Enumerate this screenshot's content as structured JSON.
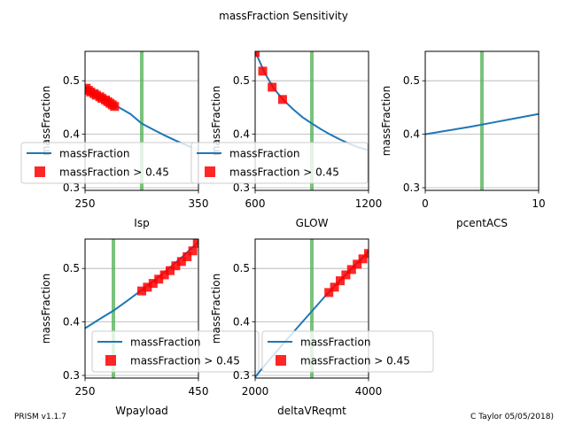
{
  "figure": {
    "title": "massFraction Sensitivity",
    "footer_left": "PRISM v1.1.7",
    "footer_right": "C Taylor 05/05/2018)"
  },
  "colors": {
    "line": "#1f77b4",
    "marker": "#ff0000",
    "reference": "#4caf50",
    "grid": "#b0b0b0"
  },
  "chart_data": [
    {
      "type": "line",
      "xlabel": "Isp",
      "ylabel": "massFraction",
      "xlim": [
        250,
        350
      ],
      "ylim": [
        0.295,
        0.555
      ],
      "xticks": [
        "250",
        "350"
      ],
      "yticks": [
        "0.3",
        "0.4",
        "0.5"
      ],
      "reference_x": 300,
      "series": [
        {
          "name": "massFraction",
          "kind": "line",
          "x": [
            250,
            260,
            270,
            280,
            290,
            300,
            310,
            320,
            330,
            340,
            350
          ],
          "y": [
            0.488,
            0.475,
            0.462,
            0.45,
            0.438,
            0.42,
            0.409,
            0.398,
            0.388,
            0.379,
            0.37
          ]
        },
        {
          "name": "massFraction > 0.45",
          "kind": "markers",
          "x": [
            251,
            253,
            255,
            258,
            260,
            263,
            265,
            268,
            270,
            272,
            274,
            276
          ],
          "y": [
            0.486,
            0.482,
            0.479,
            0.476,
            0.473,
            0.47,
            0.467,
            0.464,
            0.461,
            0.458,
            0.455,
            0.452
          ]
        }
      ],
      "legend": "lower-left"
    },
    {
      "type": "line",
      "xlabel": "GLOW",
      "ylabel": "massFraction",
      "xlim": [
        600,
        1200
      ],
      "ylim": [
        0.295,
        0.555
      ],
      "xticks": [
        "600",
        "1200"
      ],
      "yticks": [
        "0.3",
        "0.4",
        "0.5"
      ],
      "reference_x": 900,
      "series": [
        {
          "name": "massFraction",
          "kind": "line",
          "x": [
            600,
            650,
            700,
            750,
            800,
            850,
            900,
            950,
            1000,
            1050,
            1100,
            1150,
            1200
          ],
          "y": [
            0.555,
            0.515,
            0.485,
            0.464,
            0.447,
            0.432,
            0.42,
            0.409,
            0.399,
            0.39,
            0.382,
            0.375,
            0.37
          ]
        },
        {
          "name": "massFraction > 0.45",
          "kind": "markers",
          "x": [
            600,
            640,
            690,
            745
          ],
          "y": [
            0.553,
            0.518,
            0.488,
            0.465
          ]
        }
      ],
      "legend": "lower-left"
    },
    {
      "type": "line",
      "xlabel": "pcentACS",
      "ylabel": "massFraction",
      "xlim": [
        0,
        10
      ],
      "ylim": [
        0.295,
        0.555
      ],
      "xticks": [
        "0",
        "10"
      ],
      "yticks": [
        "0.3",
        "0.4",
        "0.5"
      ],
      "reference_x": 5,
      "series": [
        {
          "name": "massFraction",
          "kind": "line",
          "x": [
            0,
            2,
            4,
            6,
            8,
            10
          ],
          "y": [
            0.4,
            0.407,
            0.414,
            0.422,
            0.43,
            0.438
          ]
        }
      ],
      "legend": "none"
    },
    {
      "type": "line",
      "xlabel": "Wpayload",
      "ylabel": "massFraction",
      "xlim": [
        250,
        450
      ],
      "ylim": [
        0.295,
        0.555
      ],
      "xticks": [
        "250",
        "450"
      ],
      "yticks": [
        "0.3",
        "0.4",
        "0.5"
      ],
      "reference_x": 300,
      "series": [
        {
          "name": "massFraction",
          "kind": "line",
          "x": [
            250,
            275,
            300,
            325,
            350,
            375,
            400,
            425,
            450
          ],
          "y": [
            0.388,
            0.405,
            0.421,
            0.44,
            0.46,
            0.48,
            0.502,
            0.525,
            0.55
          ]
        },
        {
          "name": "massFraction > 0.45",
          "kind": "markers",
          "x": [
            350,
            360,
            370,
            380,
            390,
            400,
            410,
            420,
            430,
            440,
            448
          ],
          "y": [
            0.458,
            0.465,
            0.472,
            0.48,
            0.488,
            0.496,
            0.505,
            0.513,
            0.522,
            0.533,
            0.547
          ]
        }
      ],
      "legend": "lower-right"
    },
    {
      "type": "line",
      "xlabel": "deltaVReqmt",
      "ylabel": "massFraction",
      "xlim": [
        2000,
        4000
      ],
      "ylim": [
        0.295,
        0.555
      ],
      "xticks": [
        "2000",
        "4000"
      ],
      "yticks": [
        "0.3",
        "0.4",
        "0.5"
      ],
      "reference_x": 3000,
      "series": [
        {
          "name": "massFraction",
          "kind": "line",
          "x": [
            2000,
            2250,
            2500,
            2750,
            3000,
            3250,
            3500,
            3750,
            4000
          ],
          "y": [
            0.297,
            0.329,
            0.36,
            0.39,
            0.42,
            0.45,
            0.478,
            0.505,
            0.532
          ]
        },
        {
          "name": "massFraction > 0.45",
          "kind": "markers",
          "x": [
            3300,
            3400,
            3500,
            3600,
            3700,
            3800,
            3900,
            4000
          ],
          "y": [
            0.455,
            0.465,
            0.477,
            0.488,
            0.498,
            0.508,
            0.518,
            0.528
          ]
        }
      ],
      "legend": "lower-right"
    }
  ]
}
